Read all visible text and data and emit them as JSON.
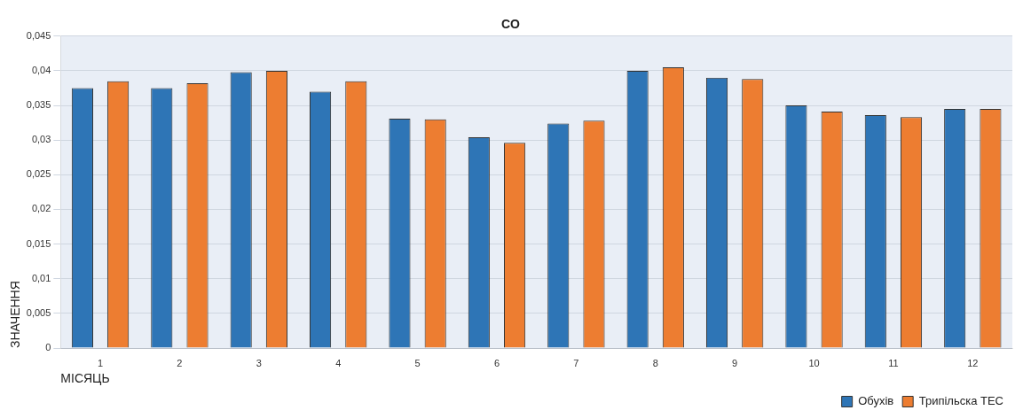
{
  "chart_data": {
    "type": "bar",
    "title": "CO",
    "xlabel": "МІСЯЦЬ",
    "ylabel": "ЗНАЧЕННЯ",
    "categories": [
      "1",
      "2",
      "3",
      "4",
      "5",
      "6",
      "7",
      "8",
      "9",
      "10",
      "11",
      "12"
    ],
    "series": [
      {
        "name": "Обухів",
        "color": "#2e75b6",
        "values": [
          0.0375,
          0.0375,
          0.0398,
          0.037,
          0.0331,
          0.0304,
          0.0324,
          0.04,
          0.039,
          0.035,
          0.0336,
          0.0345
        ]
      },
      {
        "name": "Трипільска ТЕС",
        "color": "#ed7d31",
        "values": [
          0.0385,
          0.0382,
          0.04,
          0.0385,
          0.033,
          0.0296,
          0.0328,
          0.0405,
          0.0388,
          0.0341,
          0.0333,
          0.0345
        ]
      }
    ],
    "ylim": [
      0,
      0.045
    ],
    "yticks": [
      {
        "value": 0,
        "label": "0"
      },
      {
        "value": 0.005,
        "label": "0,005"
      },
      {
        "value": 0.01,
        "label": "0,01"
      },
      {
        "value": 0.015,
        "label": "0,015"
      },
      {
        "value": 0.02,
        "label": "0,02"
      },
      {
        "value": 0.025,
        "label": "0,025"
      },
      {
        "value": 0.03,
        "label": "0,03"
      },
      {
        "value": 0.035,
        "label": "0,035"
      },
      {
        "value": 0.04,
        "label": "0,04"
      },
      {
        "value": 0.045,
        "label": "0,045"
      }
    ],
    "grid": "y",
    "legend": "bottom right"
  }
}
